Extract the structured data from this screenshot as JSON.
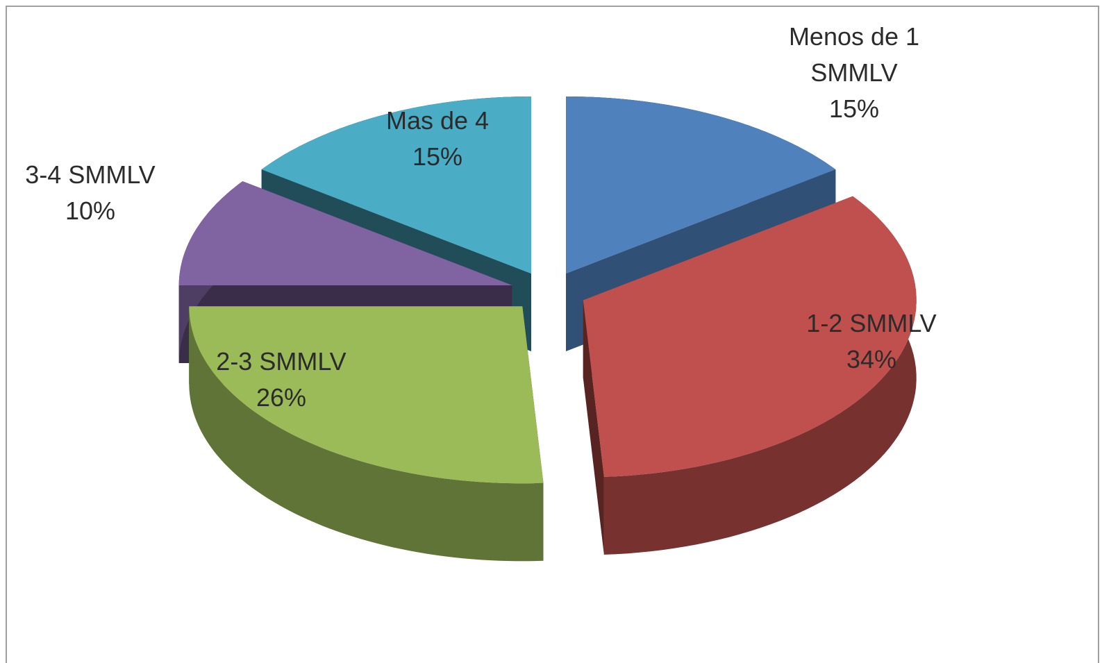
{
  "chart_data": {
    "type": "pie",
    "categories": [
      "Menos de 1 SMMLV",
      "1-2 SMMLV",
      "2-3 SMMLV",
      "3-4 SMMLV",
      "Mas de 4"
    ],
    "values": [
      15,
      34,
      26,
      10,
      15
    ],
    "value_labels": [
      "15%",
      "34%",
      "26%",
      "10%",
      "15%"
    ],
    "colors": [
      "#4f81bd",
      "#c0504d",
      "#9bbb59",
      "#8064a2",
      "#4bacc6"
    ]
  }
}
